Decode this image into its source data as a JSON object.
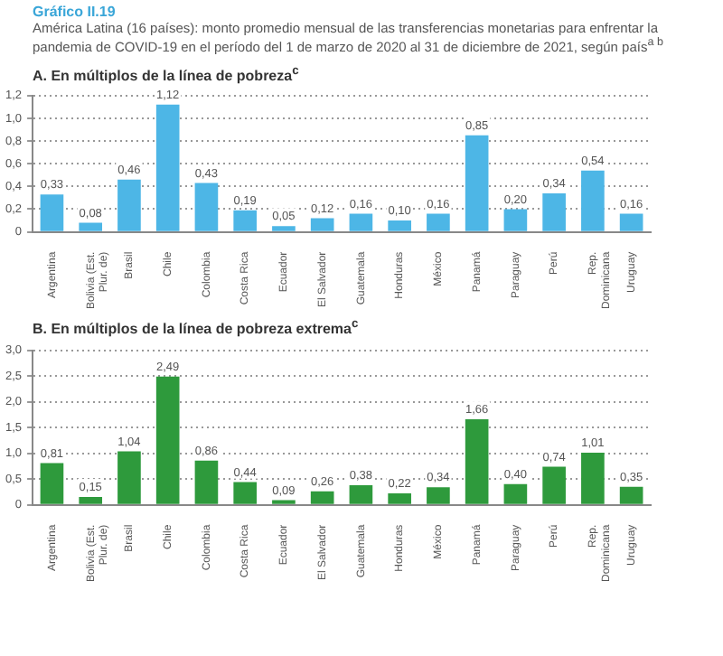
{
  "chart_data": [
    {
      "type": "bar",
      "title": "Gráfico II.19",
      "subtitle": "América Latina (16 países): monto promedio mensual de las transferencias monetarias para enfrentar la pandemia de COVID-19 en el período del 1 de marzo de 2020 al 31 de diciembre de 2021, según país$^{a b}$",
      "annotations": [
        "A. En múltiplos de la línea de pobreza$^{c}$"
      ],
      "categories": [
        "Argentina",
        "Bolivia (Est. Plur. de)",
        "Brasil",
        "Chile",
        "Colombia",
        "Costa Rica",
        "Ecuador",
        "El Salvador",
        "Guatemala",
        "Honduras",
        "México",
        "Panamá",
        "Paraguay",
        "Perú",
        "Rep. Dominicana",
        "Uruguay"
      ],
      "values": [
        0.33,
        0.08,
        0.46,
        1.12,
        0.43,
        0.19,
        0.05,
        0.12,
        0.16,
        0.1,
        0.16,
        0.85,
        0.2,
        0.34,
        0.54,
        0.16
      ],
      "value_labels": [
        "0,33",
        "0,08",
        "0,46",
        "1,12",
        "0,43",
        "0,19",
        "0,05",
        "0,12",
        "0,16",
        "0,10",
        "0,16",
        "0,85",
        "0,20",
        "0,34",
        "0,54",
        "0,16"
      ],
      "color": "#4db6e6",
      "ylim": [
        0,
        1.2
      ],
      "yticks": [
        0,
        {
          "value": 0.2,
          "label": "0,2"
        },
        {
          "value": 0.4,
          "label": "0,4"
        },
        {
          "value": 0.6,
          "label": "0,6"
        },
        {
          "value": 0.8,
          "label": "0,8"
        },
        {
          "value": 1,
          "label": "1,0"
        },
        {
          "value": 1.2,
          "label": "1,2"
        }
      ],
      "grid": "y",
      "line_style": "dotted"
    },
    {
      "type": "bar",
      "title": "B. En múltiplos de la línea de pobreza extrema$^{c}$",
      "categories": [
        "Argentina",
        "Bolivia (Est. Plur. de)",
        "Brasil",
        "Chile",
        "Colombia",
        "Costa Rica",
        "Ecuador",
        "El Salvador",
        "Guatemala",
        "Honduras",
        "México",
        "Panamá",
        "Paraguay",
        "Perú",
        "Rep. Dominicana",
        "Uruguay"
      ],
      "values": [
        0.81,
        0.15,
        1.04,
        2.49,
        0.86,
        0.44,
        0.09,
        0.26,
        0.38,
        0.22,
        0.34,
        1.66,
        0.4,
        0.74,
        1.01,
        0.35
      ],
      "value_labels": [
        "0,81",
        "0,15",
        "1,04",
        "2,49",
        "0,86",
        "0,44",
        "0,09",
        "0,26",
        "0,38",
        "0,22",
        "0,34",
        "1,66",
        "0,40",
        "0,74",
        "1,01",
        "0,35"
      ],
      "color": "#2e9a3c",
      "ylim": [
        0,
        3
      ],
      "yticks": [
        0,
        {
          "value": 0.5,
          "label": "0,5"
        },
        {
          "value": 1,
          "label": "1,0"
        },
        {
          "value": 1.5,
          "label": "1,5"
        },
        {
          "value": 2,
          "label": "2,0"
        },
        {
          "value": 2.5,
          "label": "2,5"
        },
        {
          "value": 3,
          "label": "3,0"
        }
      ],
      "grid": "y",
      "line_style": "dotted"
    }
  ]
}
